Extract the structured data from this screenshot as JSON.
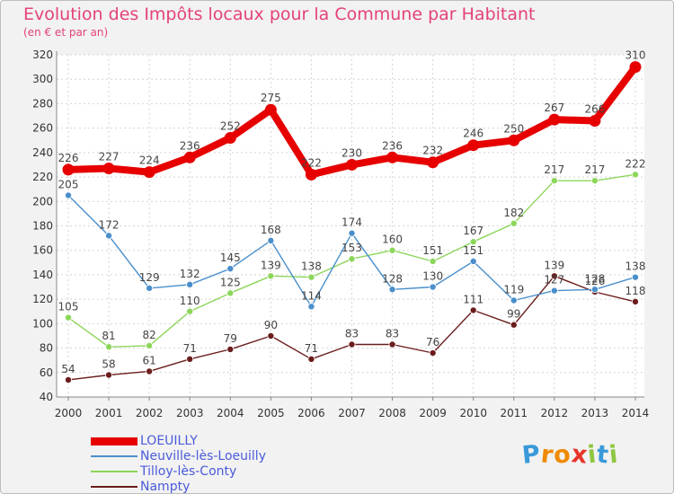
{
  "title": "Evolution des Impôts locaux pour la Commune par Habitant",
  "subtitle": "(en € et par an)",
  "chart_data": {
    "type": "line",
    "title": "Evolution des Impôts locaux pour la Commune par Habitant",
    "subtitle": "(en € et par an)",
    "xlabel": "",
    "ylabel": "",
    "x": [
      "2000",
      "2001",
      "2002",
      "2003",
      "2004",
      "2005",
      "2006",
      "2007",
      "2008",
      "2009",
      "2010",
      "2011",
      "2012",
      "2013",
      "2014"
    ],
    "ylim": [
      40,
      320
    ],
    "yticks": [
      40,
      60,
      80,
      100,
      120,
      140,
      160,
      180,
      200,
      220,
      240,
      260,
      280,
      300,
      320
    ],
    "grid": true,
    "legend_position": "bottom-left",
    "series": [
      {
        "name": "LOEUILLY",
        "color": "#e60000",
        "values": [
          226,
          227,
          224,
          236,
          252,
          275,
          222,
          230,
          236,
          232,
          246,
          250,
          267,
          266,
          310
        ]
      },
      {
        "name": "Neuville-lès-Loeuilly",
        "color": "#4a8fcc",
        "values": [
          205,
          172,
          129,
          132,
          145,
          168,
          114,
          174,
          128,
          130,
          151,
          119,
          127,
          128,
          138
        ]
      },
      {
        "name": "Tilloy-lès-Conty",
        "color": "#8cd65a",
        "values": [
          105,
          81,
          82,
          110,
          125,
          139,
          138,
          153,
          160,
          151,
          167,
          182,
          217,
          217,
          222
        ]
      },
      {
        "name": "Nampty",
        "color": "#6b1c1c",
        "values": [
          54,
          58,
          61,
          71,
          79,
          90,
          71,
          83,
          83,
          76,
          111,
          99,
          139,
          126,
          118
        ]
      }
    ]
  },
  "logo": {
    "letters": [
      "P",
      "r",
      "o",
      "x",
      "i",
      "t",
      "i"
    ],
    "colors": [
      "#3a9ad9",
      "#f08a00",
      "#f08a00",
      "#e8352a",
      "#8fc641",
      "#3a9ad9",
      "#8fc641"
    ]
  }
}
